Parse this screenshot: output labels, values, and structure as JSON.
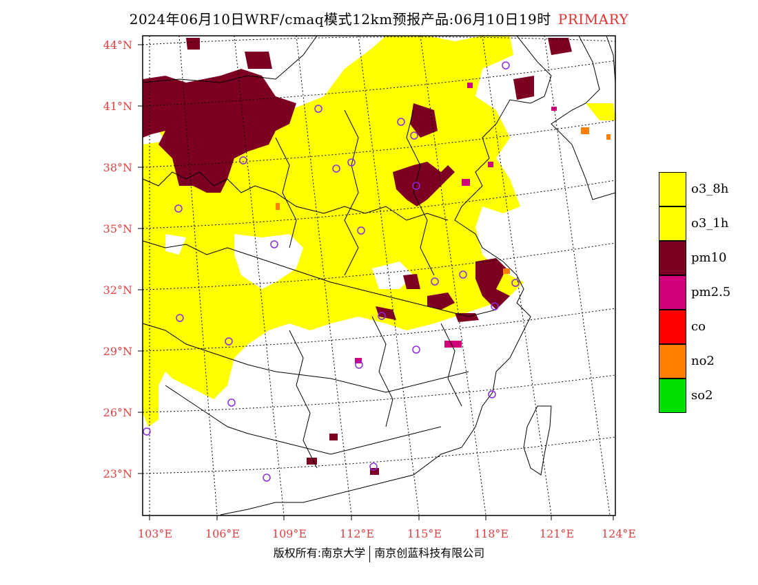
{
  "title": {
    "main": "2024年06月10日WRF/cmaq模式12km预报产品:06月10日19时",
    "tag": "PRIMARY"
  },
  "axes": {
    "lat_ticks": [
      "44°N",
      "41°N",
      "38°N",
      "35°N",
      "32°N",
      "29°N",
      "26°N",
      "23°N"
    ],
    "lon_ticks": [
      "103°E",
      "106°E",
      "109°E",
      "112°E",
      "115°E",
      "118°E",
      "121°E",
      "124°E"
    ]
  },
  "legend": [
    {
      "label": "o3_8h",
      "color": "#ffff00"
    },
    {
      "label": "o3_1h",
      "color": "#ffff00"
    },
    {
      "label": "pm10",
      "color": "#7d0022"
    },
    {
      "label": "pm2.5",
      "color": "#d1007a"
    },
    {
      "label": "co",
      "color": "#ff0000"
    },
    {
      "label": "no2",
      "color": "#ff7f00"
    },
    {
      "label": "so2",
      "color": "#00e000"
    }
  ],
  "footer": {
    "left": "版权所有:南京大学",
    "right": "南京创蓝科技有限公司"
  },
  "colors": {
    "axis_text": "#e04040",
    "station_marker": "#8a2be2"
  }
}
